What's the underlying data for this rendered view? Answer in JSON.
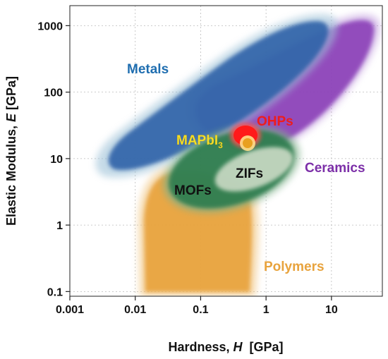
{
  "chart_data": {
    "type": "area",
    "title": "",
    "xlabel_prefix": "Hardness, ",
    "xlabel_var": "H",
    "xlabel_unit": "  [GPa]",
    "ylabel_prefix": "Elastic Modulus, ",
    "ylabel_var": "E",
    "ylabel_unit": " [GPa]",
    "x_scale": "log",
    "y_scale": "log",
    "xlim": [
      0.001,
      60
    ],
    "ylim": [
      0.085,
      2000
    ],
    "x_ticks": [
      {
        "value": 0.001,
        "label": "0.001"
      },
      {
        "value": 0.01,
        "label": "0.01"
      },
      {
        "value": 0.1,
        "label": "0.1"
      },
      {
        "value": 1,
        "label": "1"
      },
      {
        "value": 10,
        "label": "10"
      }
    ],
    "y_ticks": [
      {
        "value": 0.1,
        "label": "0.1"
      },
      {
        "value": 1,
        "label": "1"
      },
      {
        "value": 10,
        "label": "10"
      },
      {
        "value": 100,
        "label": "100"
      },
      {
        "value": 1000,
        "label": "1000"
      }
    ],
    "grid": true,
    "regions": [
      {
        "name": "Ceramics",
        "color": "#8b3fb8",
        "label_at": [
          4.5,
          8
        ]
      },
      {
        "name": "Metals",
        "color": "#2e72b0",
        "label_at": [
          0.025,
          160
        ]
      },
      {
        "name": "Polymers",
        "color": "#e8a33d",
        "label_at": [
          2.5,
          0.55
        ]
      },
      {
        "name": "MOFs",
        "color": "#2e7d4f",
        "label_at": [
          0.045,
          2.5
        ]
      },
      {
        "name": "ZIFs",
        "color": "#c8d8c0",
        "label_at": [
          0.6,
          8
        ]
      },
      {
        "name": "OHPs",
        "color": "#ff1a1a",
        "label_at": [
          1.0,
          27
        ]
      },
      {
        "name": "MAPbI",
        "subscript": "3",
        "color": "#f5e02a",
        "label_at": [
          0.065,
          16
        ]
      }
    ]
  }
}
